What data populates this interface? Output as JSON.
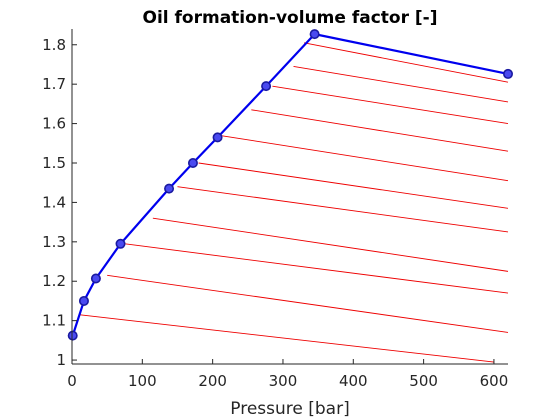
{
  "chart_data": {
    "type": "line",
    "title": "Oil formation-volume factor [-]",
    "xlabel": "Pressure [bar]",
    "ylabel": "",
    "xlim": [
      0,
      620
    ],
    "ylim": [
      0.99,
      1.84
    ],
    "x_ticks": [
      "0",
      "100",
      "200",
      "300",
      "400",
      "500",
      "600"
    ],
    "y_ticks": [
      "1",
      "1.1",
      "1.2",
      "1.3",
      "1.4",
      "1.5",
      "1.6",
      "1.7",
      "1.8"
    ],
    "grid": false,
    "colors": {
      "main_curve": "#0000ee",
      "marker_fill": "#4a4af0",
      "undersaturated_lines": "#ee0000",
      "axis": "#262626"
    },
    "main_series": {
      "x": [
        1,
        17,
        34,
        69,
        138,
        172,
        207,
        276,
        345,
        620
      ],
      "y": [
        1.062,
        1.15,
        1.207,
        1.295,
        1.435,
        1.5,
        1.565,
        1.695,
        1.827,
        1.726
      ]
    },
    "undersaturated_lines": [
      {
        "x": [
          10,
          600
        ],
        "y": [
          1.115,
          0.995
        ]
      },
      {
        "x": [
          50,
          620
        ],
        "y": [
          1.215,
          1.07
        ]
      },
      {
        "x": [
          75,
          620
        ],
        "y": [
          1.295,
          1.17
        ]
      },
      {
        "x": [
          115,
          620
        ],
        "y": [
          1.36,
          1.225
        ]
      },
      {
        "x": [
          150,
          620
        ],
        "y": [
          1.44,
          1.325
        ]
      },
      {
        "x": [
          180,
          620
        ],
        "y": [
          1.5,
          1.385
        ]
      },
      {
        "x": [
          210,
          620
        ],
        "y": [
          1.57,
          1.455
        ]
      },
      {
        "x": [
          255,
          620
        ],
        "y": [
          1.635,
          1.53
        ]
      },
      {
        "x": [
          285,
          620
        ],
        "y": [
          1.695,
          1.6
        ]
      },
      {
        "x": [
          315,
          620
        ],
        "y": [
          1.745,
          1.655
        ]
      },
      {
        "x": [
          330,
          620
        ],
        "y": [
          1.805,
          1.705
        ]
      }
    ]
  }
}
